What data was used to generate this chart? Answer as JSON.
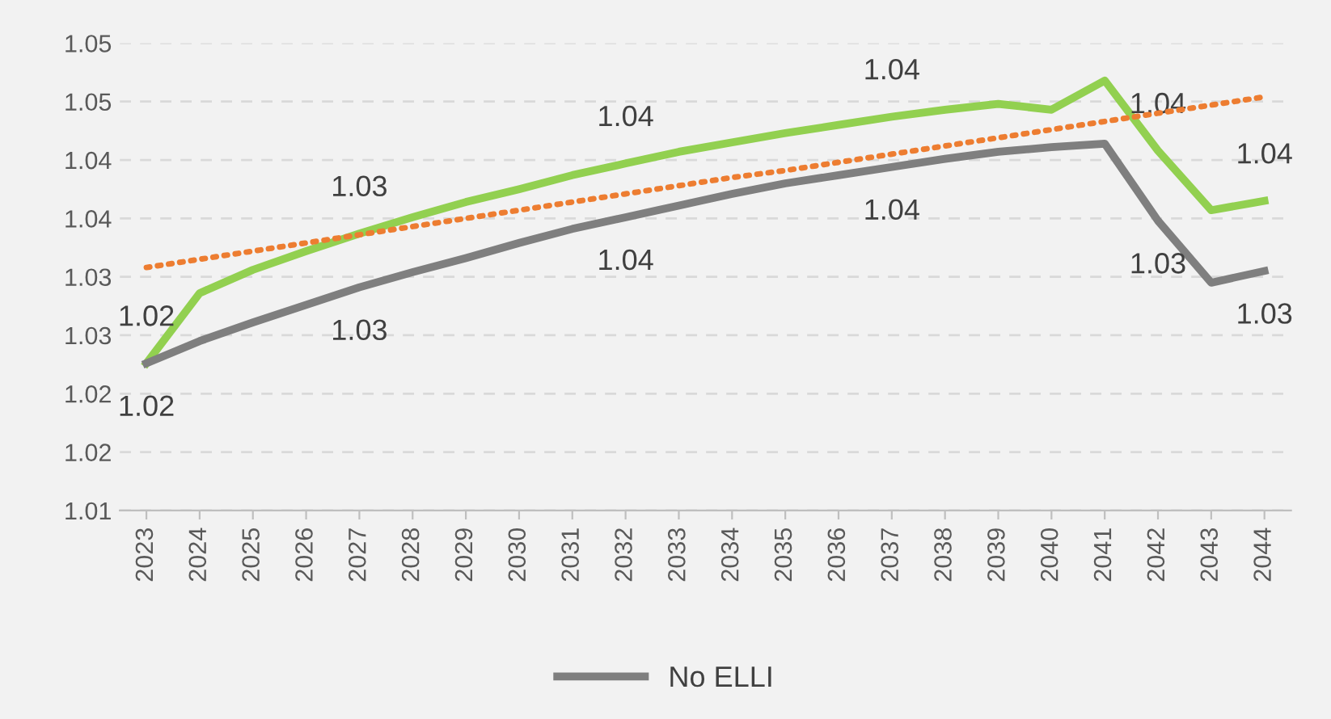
{
  "chart_data": {
    "type": "line",
    "categories": [
      "2023",
      "2024",
      "2025",
      "2026",
      "2027",
      "2028",
      "2029",
      "2030",
      "2031",
      "2032",
      "2033",
      "2034",
      "2035",
      "2036",
      "2037",
      "2038",
      "2039",
      "2040",
      "2041",
      "2042",
      "2043",
      "2044"
    ],
    "series": [
      {
        "color": "#92d050",
        "values": [
          1.0226,
          1.0286,
          1.0306,
          1.0322,
          1.0337,
          1.0351,
          1.0364,
          1.0375,
          1.0387,
          1.0397,
          1.0407,
          1.0415,
          1.0423,
          1.043,
          1.0437,
          1.0443,
          1.0448,
          1.0443,
          1.0468,
          1.0408,
          1.0357,
          1.0365
        ],
        "value_labels": [
          "1.02",
          null,
          null,
          null,
          "1.03",
          null,
          null,
          null,
          null,
          "1.04",
          null,
          null,
          null,
          null,
          "1.04",
          null,
          null,
          null,
          null,
          "1.04",
          null,
          "1.04"
        ]
      },
      {
        "name": "No ELLI",
        "color": "#7f7f7f",
        "values": [
          1.0226,
          1.0245,
          1.0261,
          1.0276,
          1.0291,
          1.0304,
          1.0316,
          1.0329,
          1.0341,
          1.0351,
          1.0361,
          1.0371,
          1.038,
          1.0387,
          1.0394,
          1.0401,
          1.0407,
          1.0411,
          1.0414,
          1.0348,
          1.0295,
          1.0305
        ],
        "value_labels": [
          "1.02",
          null,
          null,
          null,
          "1.03",
          null,
          null,
          null,
          null,
          "1.04",
          null,
          null,
          null,
          null,
          "1.04",
          null,
          null,
          null,
          null,
          "1.03",
          null,
          "1.03"
        ]
      },
      {
        "type": "line",
        "color": "#ed7d31",
        "line_style": "dotted",
        "values": [
          1.0308,
          1.0315,
          1.0322,
          1.0329,
          1.0336,
          1.0343,
          1.035,
          1.0357,
          1.0364,
          1.0371,
          1.0378,
          1.0385,
          1.0391,
          1.0398,
          1.0405,
          1.0412,
          1.0419,
          1.0426,
          1.0433,
          1.044,
          1.0447,
          1.0454
        ]
      }
    ],
    "ylim": [
      1.01,
      1.05
    ],
    "yticks": [
      {
        "value": 1.01,
        "label": "1.01"
      },
      {
        "value": 1.015,
        "label": "1.02"
      },
      {
        "value": 1.02,
        "label": "1.02"
      },
      {
        "value": 1.025,
        "label": "1.03"
      },
      {
        "value": 1.03,
        "label": "1.03"
      },
      {
        "value": 1.035,
        "label": "1.04"
      },
      {
        "value": 1.04,
        "label": "1.04"
      },
      {
        "value": 1.045,
        "label": "1.05"
      },
      {
        "value": 1.05,
        "label": "1.05"
      }
    ],
    "grid": "y",
    "legend": "bottom",
    "marker": "none"
  }
}
